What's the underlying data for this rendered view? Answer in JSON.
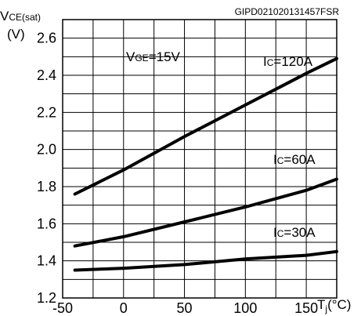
{
  "chart_data": {
    "type": "line",
    "reference_id": "GIPD021020131457FSR",
    "ylabel": {
      "main": "V",
      "sub": "CE(sat)",
      "unit": "(V)"
    },
    "xlabel": {
      "main": "T",
      "sub": "j",
      "unit": "(°C)"
    },
    "condition": {
      "main": "V",
      "sub": "GE",
      "rest": "=15V"
    },
    "xlim": [
      -50,
      175
    ],
    "ylim": [
      1.2,
      2.7
    ],
    "x_ticks": [
      -50,
      0,
      50,
      100,
      150
    ],
    "x_tick_labels": [
      "-50",
      "0",
      "50",
      "100",
      "150"
    ],
    "y_ticks": [
      1.2,
      1.4,
      1.6,
      1.8,
      2.0,
      2.2,
      2.4,
      2.6
    ],
    "y_tick_labels": [
      "1.2",
      "1.4",
      "1.6",
      "1.8",
      "2.0",
      "2.2",
      "2.4",
      "2.6"
    ],
    "grid": true,
    "line_color": "#000000",
    "series": [
      {
        "name": "120A",
        "label_prefix": "I",
        "label_sub": "C",
        "label_rest": "=120A",
        "x": [
          -40,
          0,
          50,
          100,
          150,
          175
        ],
        "y": [
          1.76,
          1.89,
          2.07,
          2.24,
          2.41,
          2.49
        ]
      },
      {
        "name": "60A",
        "label_prefix": "I",
        "label_sub": "C",
        "label_rest": "=60A",
        "x": [
          -40,
          0,
          50,
          100,
          150,
          175
        ],
        "y": [
          1.48,
          1.53,
          1.61,
          1.69,
          1.78,
          1.84
        ]
      },
      {
        "name": "30A",
        "label_prefix": "I",
        "label_sub": "C",
        "label_rest": "=30A",
        "x": [
          -40,
          0,
          50,
          100,
          150,
          175
        ],
        "y": [
          1.35,
          1.36,
          1.38,
          1.41,
          1.43,
          1.45
        ]
      }
    ]
  }
}
